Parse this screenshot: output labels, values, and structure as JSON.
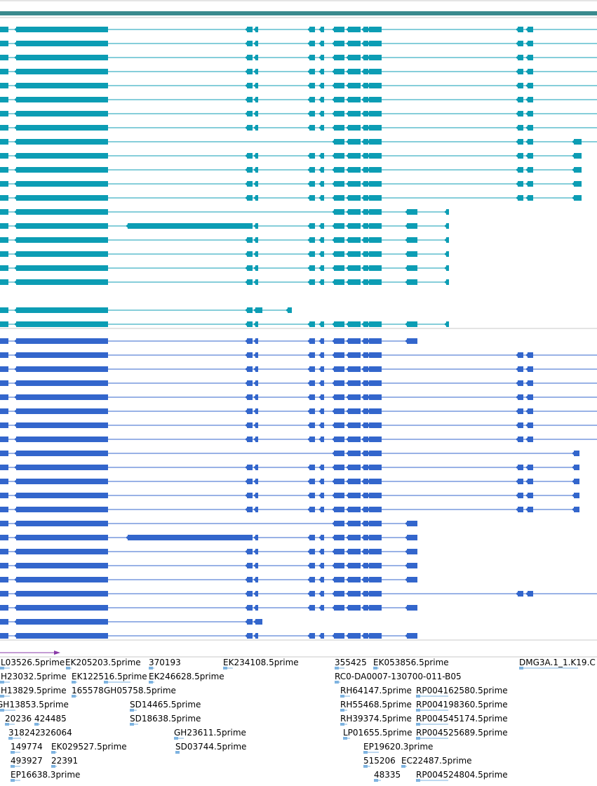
{
  "colors": {
    "top_bar": "#3a8a8e",
    "track_a": "#0c9db4",
    "track_b": "#3366cc",
    "est": "#7eb3e0",
    "arrow": "#8a3aa8",
    "divider": "#c8c8c8"
  },
  "est_labels": [
    "L03526.5prime",
    "EK205203.5prime",
    "370193",
    "EK234108.5prime",
    "355425",
    "EK053856.5prime",
    "DMG3A.1_1.K19.C",
    "H23032.5prime",
    "EK122516.5prime",
    "EK246628.5prime",
    "RC0-DA0007-130700-011-B05",
    "H13829.5prime",
    "165578",
    "GH05758.5prime",
    "RH64147.5prime",
    "RP004162580.5prime",
    "GH13853.5prime",
    "SD14465.5prime",
    "RH55468.5prime",
    "RP004198360.5prime",
    "20236",
    "424485",
    "SD18638.5prime",
    "RH39374.5prime",
    "RP004545174.5prime",
    "318242",
    "326064",
    "GH23611.5prime",
    "LP01655.5prime",
    "RP004525689.5prime",
    "149774",
    "EK029527.5prime",
    "SD03744.5prime",
    "EP19620.3prime",
    "493927",
    "22391",
    "515206",
    "EC22487.5prime",
    "EP16638.3prime",
    "48335",
    "RP004524804.5prime"
  ]
}
